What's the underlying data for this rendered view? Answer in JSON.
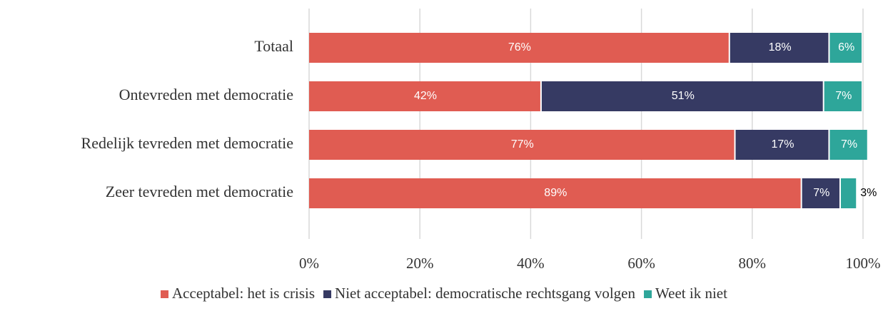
{
  "chart_data": {
    "type": "stacked-barh",
    "categories": [
      "Totaal",
      "Ontevreden met democratie",
      "Redelijk tevreden met democratie",
      "Zeer tevreden met democratie"
    ],
    "series": [
      {
        "name": "Acceptabel: het is crisis",
        "color": "#e05c52",
        "values": [
          76,
          42,
          77,
          89
        ],
        "value_labels": [
          "76%",
          "42%",
          "77%",
          "89%"
        ]
      },
      {
        "name": "Niet acceptabel: democratische rechtsgang volgen",
        "color": "#363a63",
        "values": [
          18,
          51,
          17,
          7
        ],
        "value_labels": [
          "18%",
          "51%",
          "17%",
          "7%"
        ]
      },
      {
        "name": "Weet ik niet",
        "color": "#2ea69a",
        "values": [
          6,
          7,
          7,
          3
        ],
        "value_labels": [
          "6%",
          "7%",
          "7%",
          "3%"
        ]
      }
    ],
    "xlim": [
      0,
      100
    ],
    "xticks": [
      {
        "value": 0,
        "label": "0%"
      },
      {
        "value": 20,
        "label": "20%"
      },
      {
        "value": 40,
        "label": "40%"
      },
      {
        "value": 60,
        "label": "60%"
      },
      {
        "value": 80,
        "label": "80%"
      },
      {
        "value": 100,
        "label": "100%"
      }
    ],
    "grid": true,
    "legend": "bottom"
  }
}
